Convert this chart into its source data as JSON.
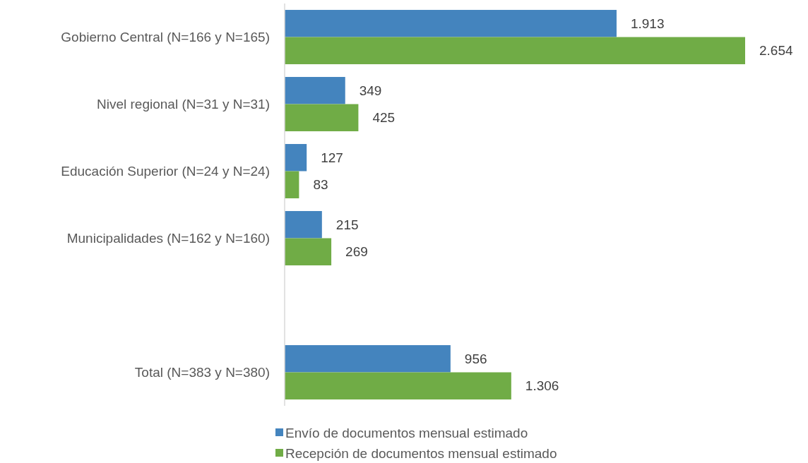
{
  "chart_data": {
    "type": "bar",
    "orientation": "horizontal",
    "categories": [
      "Gobierno Central (N=166 y N=165)",
      "Nivel regional (N=31 y N=31)",
      "Educación Superior (N=24 y N=24)",
      "Municipalidades (N=162 y N=160)",
      null,
      "Total (N=383 y N=380)"
    ],
    "series": [
      {
        "name": "Envío de documentos mensual estimado",
        "color": "#4484be",
        "values": [
          1913,
          349,
          127,
          215,
          null,
          956
        ],
        "value_labels": [
          "1.913",
          "349",
          "127",
          "215",
          null,
          "956"
        ]
      },
      {
        "name": "Recepción de documentos mensual estimado",
        "color": "#70ac46",
        "values": [
          2654,
          425,
          83,
          269,
          null,
          1306
        ],
        "value_labels": [
          "2.654",
          "425",
          "83",
          "269",
          null,
          "1.306"
        ]
      }
    ],
    "legend": "bottom"
  }
}
